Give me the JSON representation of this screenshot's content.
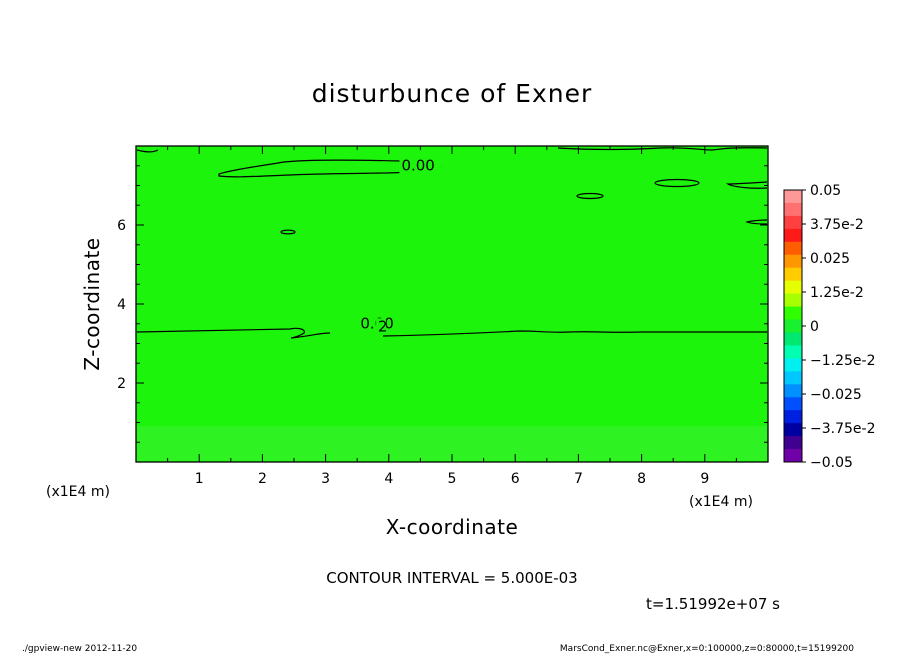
{
  "chart_data": {
    "type": "contour",
    "title": "disturbunce of Exner",
    "xlabel": "X-coordinate",
    "ylabel": "Z-coordinate",
    "x_unit": "(x1E4 m)",
    "y_unit": "(x1E4 m)",
    "xlim": [
      0,
      10
    ],
    "ylim": [
      0,
      8
    ],
    "x_ticks": [
      1,
      2,
      3,
      4,
      5,
      6,
      7,
      8,
      9
    ],
    "y_ticks": [
      2,
      4,
      6
    ],
    "contour_labels": [
      {
        "text": "0.00",
        "x": 4.2,
        "y": 7.38
      },
      {
        "text": "0.00",
        "x": 3.55,
        "y": 3.38
      },
      {
        "text": "2",
        "x": 3.83,
        "y": 3.31
      }
    ],
    "colorbar": {
      "labels": [
        "0.05",
        "3.75e-2",
        "0.025",
        "1.25e-2",
        "0",
        "−1.25e-2",
        "−0.025",
        "−3.75e-2",
        "−0.05"
      ],
      "colors": [
        "#ff9898",
        "#ff7070",
        "#ff4040",
        "#ff1a1a",
        "#ff5e00",
        "#ff9800",
        "#ffcc00",
        "#e6ff00",
        "#a8ff00",
        "#30ff00",
        "#18f030",
        "#00e870",
        "#00ffb0",
        "#00f0f0",
        "#00c8ff",
        "#0090ff",
        "#0050ff",
        "#0020e0",
        "#0000a0",
        "#400090",
        "#7000a8"
      ],
      "range": [
        -0.05,
        0.05
      ]
    },
    "fill_color": "#1cf40c",
    "fill_color_low": "#2ef222",
    "contour_interval": "CONTOUR INTERVAL = 5.000E-03",
    "time": "t=1.51992e+07 s"
  },
  "footer": {
    "left": "./gpview-new  2012-11-20",
    "right": "MarsCond_Exner.nc@Exner,x=0:100000,z=0:80000,t=15199200"
  }
}
